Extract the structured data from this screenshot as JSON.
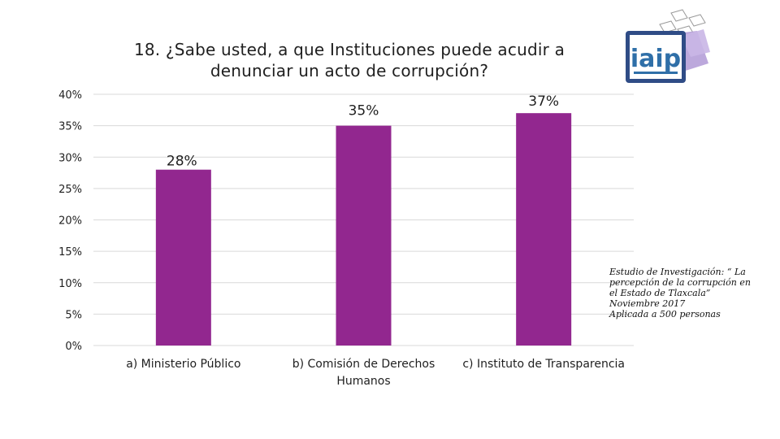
{
  "title_line1": "18. ¿Sabe usted, a que Instituciones puede acudir a",
  "title_line2": "denunciar un acto de corrupción?",
  "colors": {
    "bar": "#92278f",
    "grid": "#d9d9d9",
    "text": "#1f1f1f"
  },
  "note": {
    "line1": "Estudio de Investigación:  “ La",
    "line2": "percepción de la corrupción en",
    "line3": "el Estado de Tlaxcala”",
    "line4": "Noviembre 2017",
    "line5": "Aplicada a 500 personas"
  },
  "logo": {
    "text": "iaip",
    "icon": "iaip-logo"
  },
  "chart_data": {
    "type": "bar",
    "categories": [
      [
        "a) Ministerio Público"
      ],
      [
        "b) Comisión de Derechos",
        "Humanos"
      ],
      [
        "c) Instituto de Transparencia"
      ]
    ],
    "values": [
      28,
      35,
      37
    ],
    "data_labels": [
      "28%",
      "35%",
      "37%"
    ],
    "yticks": [
      "0%",
      "5%",
      "10%",
      "15%",
      "20%",
      "25%",
      "30%",
      "35%",
      "40%"
    ],
    "ylim": [
      0,
      40
    ],
    "grid": true
  }
}
